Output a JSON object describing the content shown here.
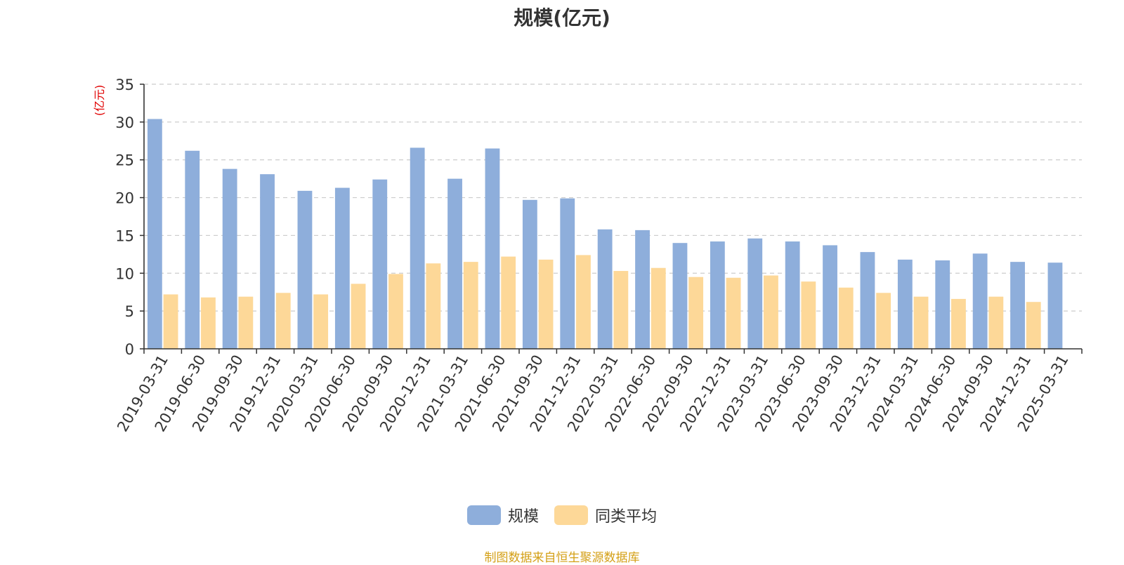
{
  "chart_data": {
    "type": "bar",
    "title": "规模(亿元)",
    "ylabel": "(亿元)",
    "xlabel": "",
    "ylim": [
      0,
      35
    ],
    "yticks": [
      0,
      5,
      10,
      15,
      20,
      25,
      30,
      35
    ],
    "grid": true,
    "legend_position": "bottom",
    "categories": [
      "2019-03-31",
      "2019-06-30",
      "2019-09-30",
      "2019-12-31",
      "2020-03-31",
      "2020-06-30",
      "2020-09-30",
      "2020-12-31",
      "2021-03-31",
      "2021-06-30",
      "2021-09-30",
      "2021-12-31",
      "2022-03-31",
      "2022-06-30",
      "2022-09-30",
      "2022-12-31",
      "2023-03-31",
      "2023-06-30",
      "2023-09-30",
      "2023-12-31",
      "2024-03-31",
      "2024-06-30",
      "2024-09-30",
      "2024-12-31",
      "2025-03-31"
    ],
    "series": [
      {
        "name": "规模",
        "color": "#8eaedb",
        "values": [
          30.4,
          26.2,
          23.8,
          23.1,
          20.9,
          21.3,
          22.4,
          26.6,
          22.5,
          26.5,
          19.7,
          19.9,
          15.8,
          15.7,
          14.0,
          14.2,
          14.6,
          14.2,
          13.7,
          12.8,
          11.8,
          11.7,
          12.6,
          11.5,
          11.4
        ]
      },
      {
        "name": "同类平均",
        "color": "#fdd898",
        "values": [
          7.2,
          6.8,
          6.9,
          7.4,
          7.2,
          8.6,
          9.9,
          11.3,
          11.5,
          12.2,
          11.8,
          12.4,
          10.3,
          10.7,
          9.5,
          9.4,
          9.7,
          8.9,
          8.1,
          7.4,
          6.9,
          6.6,
          6.9,
          6.2,
          null
        ]
      }
    ]
  },
  "legend": {
    "item1": "规模",
    "item2": "同类平均"
  },
  "source_note": "制图数据来自恒生聚源数据库",
  "colors": {
    "axis": "#333333",
    "grid": "#cccccc",
    "ylabel": "#e00000",
    "source": "#d4a017"
  }
}
